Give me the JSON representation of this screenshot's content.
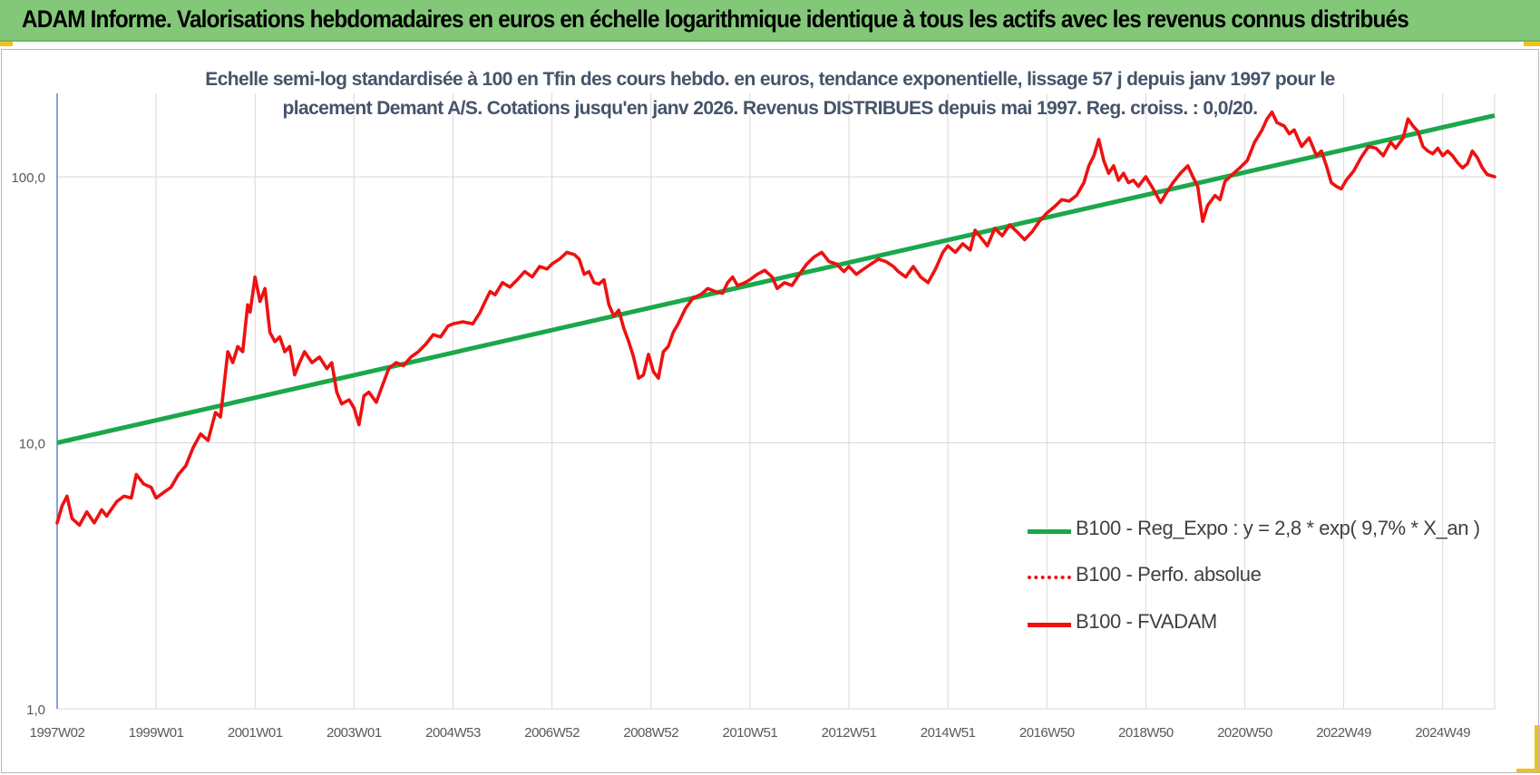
{
  "banner": {
    "title": "ADAM Informe. Valorisations hebdomadaires en euros en échelle logarithmique identique à tous les actifs avec les revenus connus distribués"
  },
  "colors": {
    "banner_bg": "#82c878",
    "accent_corner": "#f2c01a",
    "trend_line": "#1aa84a",
    "fvadam_line": "#ee1111",
    "subtitle_text": "#44546a",
    "gridline": "#d9d9d9",
    "axis_line": "#4472c4"
  },
  "chart_data": {
    "type": "line",
    "title_line1": "Echelle semi-log standardisée à 100 en Tfin des cours hebdo. en euros, tendance exponentielle, lissage 57 j depuis janv 1997 pour le",
    "title_line2": "placement Demant A/S. Cotations jusqu'en janv 2026. Revenus DISTRIBUES depuis mai 1997. Reg. croiss. : 0,0/20.",
    "y_scale": "log",
    "ylim": [
      1,
      200
    ],
    "y_ticks": [
      1,
      10,
      100
    ],
    "y_tick_labels": [
      "1,0",
      "10,0",
      "100,0"
    ],
    "x_range": [
      1997.0,
      2026.05
    ],
    "x_tick_positions": [
      1997.0,
      1999.0,
      2001.0,
      2003.0,
      2005.0,
      2007.0,
      2009.0,
      2011.0,
      2013.0,
      2015.0,
      2017.0,
      2019.0,
      2021.0,
      2023.0,
      2025.0
    ],
    "x_tick_labels": [
      "1997W02",
      "1999W01",
      "2001W01",
      "2003W01",
      "2004W53",
      "2006W52",
      "2008W52",
      "2010W51",
      "2012W51",
      "2014W51",
      "2016W50",
      "2018W50",
      "2020W50",
      "2022W49",
      "2024W49"
    ],
    "vertical_grid": true,
    "horizontal_grid": true,
    "legend_position": "inside-right",
    "series": [
      {
        "name": "B100 - Reg_Expo : y = 2,8 * exp( 9,7% *  X_an )",
        "style": "solid",
        "color": "#1aa84a",
        "points": [
          [
            1997.0,
            10.0
          ],
          [
            2026.05,
            170.0
          ]
        ]
      },
      {
        "name": "B100 - Perfo. absolue",
        "style": "dotted",
        "color": "#ee1111",
        "points": []
      },
      {
        "name": "B100 - FVADAM",
        "style": "solid",
        "color": "#ee1111",
        "points": [
          [
            1997.0,
            5.0
          ],
          [
            1997.1,
            5.8
          ],
          [
            1997.2,
            6.3
          ],
          [
            1997.3,
            5.2
          ],
          [
            1997.45,
            4.9
          ],
          [
            1997.6,
            5.5
          ],
          [
            1997.75,
            5.0
          ],
          [
            1997.9,
            5.6
          ],
          [
            1998.0,
            5.3
          ],
          [
            1998.2,
            6.0
          ],
          [
            1998.35,
            6.3
          ],
          [
            1998.5,
            6.2
          ],
          [
            1998.6,
            7.6
          ],
          [
            1998.75,
            7.0
          ],
          [
            1998.9,
            6.8
          ],
          [
            1999.0,
            6.2
          ],
          [
            1999.15,
            6.5
          ],
          [
            1999.3,
            6.8
          ],
          [
            1999.45,
            7.6
          ],
          [
            1999.6,
            8.2
          ],
          [
            1999.75,
            9.6
          ],
          [
            1999.9,
            10.8
          ],
          [
            2000.05,
            10.2
          ],
          [
            2000.2,
            13.0
          ],
          [
            2000.3,
            12.5
          ],
          [
            2000.45,
            22.0
          ],
          [
            2000.55,
            20.0
          ],
          [
            2000.65,
            23.0
          ],
          [
            2000.75,
            22.0
          ],
          [
            2000.85,
            33.0
          ],
          [
            2000.9,
            31.0
          ],
          [
            2001.0,
            42.0
          ],
          [
            2001.1,
            34.0
          ],
          [
            2001.2,
            38.0
          ],
          [
            2001.3,
            26.0
          ],
          [
            2001.4,
            24.0
          ],
          [
            2001.5,
            25.0
          ],
          [
            2001.6,
            22.0
          ],
          [
            2001.7,
            23.0
          ],
          [
            2001.8,
            18.0
          ],
          [
            2001.9,
            20.0
          ],
          [
            2002.0,
            22.0
          ],
          [
            2002.15,
            20.0
          ],
          [
            2002.3,
            21.0
          ],
          [
            2002.45,
            19.0
          ],
          [
            2002.55,
            20.0
          ],
          [
            2002.65,
            15.5
          ],
          [
            2002.75,
            14.0
          ],
          [
            2002.9,
            14.5
          ],
          [
            2003.0,
            13.5
          ],
          [
            2003.1,
            11.7
          ],
          [
            2003.2,
            15.0
          ],
          [
            2003.3,
            15.5
          ],
          [
            2003.45,
            14.2
          ],
          [
            2003.55,
            16.0
          ],
          [
            2003.7,
            19.0
          ],
          [
            2003.85,
            20.0
          ],
          [
            2004.0,
            19.5
          ],
          [
            2004.15,
            21.0
          ],
          [
            2004.3,
            22.0
          ],
          [
            2004.45,
            23.5
          ],
          [
            2004.6,
            25.5
          ],
          [
            2004.75,
            25.0
          ],
          [
            2004.9,
            27.5
          ],
          [
            2005.0,
            28.0
          ],
          [
            2005.2,
            28.5
          ],
          [
            2005.4,
            28.0
          ],
          [
            2005.55,
            31.0
          ],
          [
            2005.65,
            34.0
          ],
          [
            2005.75,
            37.0
          ],
          [
            2005.85,
            36.0
          ],
          [
            2006.0,
            40.0
          ],
          [
            2006.15,
            38.5
          ],
          [
            2006.3,
            41.0
          ],
          [
            2006.45,
            44.0
          ],
          [
            2006.6,
            42.0
          ],
          [
            2006.75,
            46.0
          ],
          [
            2006.9,
            45.0
          ],
          [
            2007.0,
            47.0
          ],
          [
            2007.15,
            49.0
          ],
          [
            2007.3,
            52.0
          ],
          [
            2007.45,
            51.0
          ],
          [
            2007.55,
            49.0
          ],
          [
            2007.65,
            43.0
          ],
          [
            2007.75,
            44.0
          ],
          [
            2007.85,
            40.0
          ],
          [
            2007.95,
            39.5
          ],
          [
            2008.05,
            41.0
          ],
          [
            2008.15,
            33.0
          ],
          [
            2008.25,
            30.0
          ],
          [
            2008.35,
            31.5
          ],
          [
            2008.45,
            27.0
          ],
          [
            2008.55,
            24.0
          ],
          [
            2008.65,
            21.0
          ],
          [
            2008.75,
            17.5
          ],
          [
            2008.85,
            18.0
          ],
          [
            2008.95,
            21.5
          ],
          [
            2009.05,
            18.5
          ],
          [
            2009.15,
            17.5
          ],
          [
            2009.25,
            22.0
          ],
          [
            2009.35,
            23.0
          ],
          [
            2009.45,
            26.0
          ],
          [
            2009.55,
            28.0
          ],
          [
            2009.7,
            32.0
          ],
          [
            2009.85,
            35.0
          ],
          [
            2010.0,
            36.0
          ],
          [
            2010.15,
            38.0
          ],
          [
            2010.3,
            37.0
          ],
          [
            2010.45,
            36.5
          ],
          [
            2010.55,
            40.0
          ],
          [
            2010.65,
            42.0
          ],
          [
            2010.75,
            39.0
          ],
          [
            2010.9,
            40.0
          ],
          [
            2011.0,
            41.0
          ],
          [
            2011.15,
            43.0
          ],
          [
            2011.3,
            44.5
          ],
          [
            2011.45,
            42.0
          ],
          [
            2011.55,
            38.0
          ],
          [
            2011.7,
            40.0
          ],
          [
            2011.85,
            39.0
          ],
          [
            2012.0,
            43.0
          ],
          [
            2012.15,
            47.0
          ],
          [
            2012.3,
            50.0
          ],
          [
            2012.45,
            52.0
          ],
          [
            2012.6,
            48.0
          ],
          [
            2012.75,
            47.0
          ],
          [
            2012.9,
            44.0
          ],
          [
            2013.0,
            46.0
          ],
          [
            2013.15,
            43.0
          ],
          [
            2013.3,
            45.0
          ],
          [
            2013.45,
            47.0
          ],
          [
            2013.6,
            49.0
          ],
          [
            2013.75,
            48.0
          ],
          [
            2013.9,
            46.0
          ],
          [
            2014.0,
            44.0
          ],
          [
            2014.15,
            42.0
          ],
          [
            2014.3,
            46.0
          ],
          [
            2014.45,
            42.0
          ],
          [
            2014.6,
            40.0
          ],
          [
            2014.75,
            45.0
          ],
          [
            2014.9,
            52.0
          ],
          [
            2015.0,
            55.0
          ],
          [
            2015.15,
            52.0
          ],
          [
            2015.3,
            56.0
          ],
          [
            2015.45,
            53.0
          ],
          [
            2015.55,
            63.0
          ],
          [
            2015.7,
            58.0
          ],
          [
            2015.8,
            55.0
          ],
          [
            2015.95,
            64.0
          ],
          [
            2016.1,
            60.0
          ],
          [
            2016.25,
            66.0
          ],
          [
            2016.4,
            62.0
          ],
          [
            2016.55,
            58.0
          ],
          [
            2016.7,
            62.0
          ],
          [
            2016.85,
            68.0
          ],
          [
            2017.0,
            73.0
          ],
          [
            2017.15,
            77.0
          ],
          [
            2017.3,
            82.0
          ],
          [
            2017.45,
            81.0
          ],
          [
            2017.6,
            85.0
          ],
          [
            2017.75,
            95.0
          ],
          [
            2017.85,
            110.0
          ],
          [
            2017.95,
            120.0
          ],
          [
            2018.05,
            138.0
          ],
          [
            2018.15,
            115.0
          ],
          [
            2018.25,
            103.0
          ],
          [
            2018.35,
            110.0
          ],
          [
            2018.45,
            97.0
          ],
          [
            2018.55,
            103.0
          ],
          [
            2018.65,
            95.0
          ],
          [
            2018.75,
            97.0
          ],
          [
            2018.85,
            92.0
          ],
          [
            2019.0,
            100.0
          ],
          [
            2019.15,
            90.0
          ],
          [
            2019.3,
            80.0
          ],
          [
            2019.4,
            86.0
          ],
          [
            2019.55,
            95.0
          ],
          [
            2019.7,
            103.0
          ],
          [
            2019.85,
            110.0
          ],
          [
            2019.95,
            100.0
          ],
          [
            2020.05,
            92.0
          ],
          [
            2020.15,
            68.0
          ],
          [
            2020.25,
            78.0
          ],
          [
            2020.4,
            85.0
          ],
          [
            2020.5,
            82.0
          ],
          [
            2020.6,
            96.0
          ],
          [
            2020.75,
            102.0
          ],
          [
            2020.9,
            108.0
          ],
          [
            2021.05,
            115.0
          ],
          [
            2021.2,
            135.0
          ],
          [
            2021.35,
            150.0
          ],
          [
            2021.45,
            165.0
          ],
          [
            2021.55,
            175.0
          ],
          [
            2021.65,
            160.0
          ],
          [
            2021.8,
            155.0
          ],
          [
            2021.9,
            145.0
          ],
          [
            2022.0,
            150.0
          ],
          [
            2022.15,
            130.0
          ],
          [
            2022.3,
            140.0
          ],
          [
            2022.45,
            120.0
          ],
          [
            2022.55,
            125.0
          ],
          [
            2022.65,
            110.0
          ],
          [
            2022.75,
            95.0
          ],
          [
            2022.85,
            92.0
          ],
          [
            2022.95,
            90.0
          ],
          [
            2023.05,
            97.0
          ],
          [
            2023.2,
            105.0
          ],
          [
            2023.35,
            118.0
          ],
          [
            2023.5,
            130.0
          ],
          [
            2023.65,
            128.0
          ],
          [
            2023.8,
            120.0
          ],
          [
            2023.95,
            135.0
          ],
          [
            2024.05,
            128.0
          ],
          [
            2024.2,
            140.0
          ],
          [
            2024.3,
            165.0
          ],
          [
            2024.4,
            155.0
          ],
          [
            2024.5,
            148.0
          ],
          [
            2024.6,
            130.0
          ],
          [
            2024.7,
            125.0
          ],
          [
            2024.8,
            122.0
          ],
          [
            2024.9,
            128.0
          ],
          [
            2025.0,
            120.0
          ],
          [
            2025.1,
            125.0
          ],
          [
            2025.2,
            120.0
          ],
          [
            2025.3,
            113.0
          ],
          [
            2025.4,
            108.0
          ],
          [
            2025.5,
            112.0
          ],
          [
            2025.6,
            125.0
          ],
          [
            2025.7,
            118.0
          ],
          [
            2025.8,
            108.0
          ],
          [
            2025.9,
            102.0
          ],
          [
            2026.05,
            100.0
          ]
        ]
      }
    ]
  }
}
